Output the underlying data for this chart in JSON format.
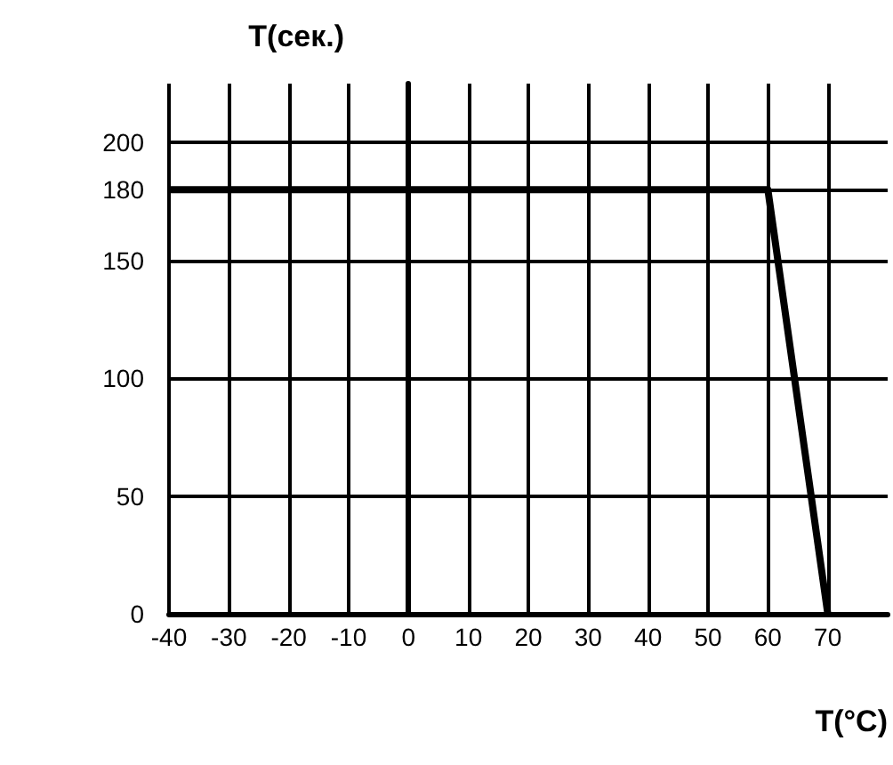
{
  "chart_data": {
    "type": "line",
    "ylabel": "T(сек.)",
    "xlabel": "T(°C)",
    "x": [
      -40,
      60,
      70
    ],
    "series": [
      {
        "color": "#000000",
        "values": [
          180,
          180,
          0
        ]
      }
    ],
    "xlim": [
      -40,
      80
    ],
    "xticks": [
      -40,
      -30,
      -20,
      -10,
      0,
      10,
      20,
      30,
      40,
      50,
      60,
      70
    ],
    "ylim": [
      0,
      225
    ],
    "yticks": [
      0,
      50,
      100,
      150,
      180,
      200
    ],
    "grid": true,
    "marker": "none",
    "line_style": "solid"
  }
}
